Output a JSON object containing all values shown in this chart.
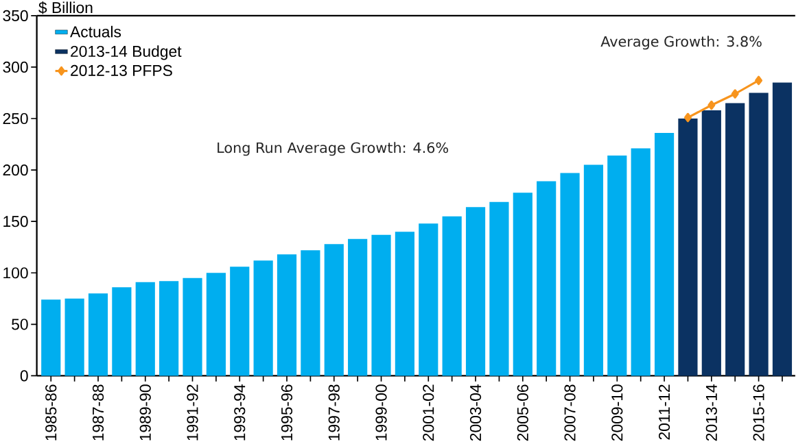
{
  "chart_data": {
    "type": "bar",
    "ylabel": "$ Billion",
    "categories": [
      "1985-86",
      null,
      "1987-88",
      null,
      "1989-90",
      null,
      "1991-92",
      null,
      "1993-94",
      null,
      "1995-96",
      null,
      "1997-98",
      null,
      "1999-00",
      null,
      "2001-02",
      null,
      "2003-04",
      null,
      "2005-06",
      null,
      "2007-08",
      null,
      "2009-10",
      null,
      "2011-12",
      null,
      "2013-14",
      null,
      "2015-16",
      null
    ],
    "series": [
      {
        "name": "Actuals",
        "color": "#00aeef",
        "values": [
          74,
          75,
          80,
          86,
          91,
          92,
          95,
          100,
          106,
          112,
          118,
          122,
          128,
          133,
          137,
          140,
          148,
          155,
          164,
          169,
          178,
          189,
          197,
          205,
          214,
          221,
          236,
          null,
          null,
          null,
          null,
          null
        ]
      },
      {
        "name": "2013-14 Budget",
        "color": "#0b3262",
        "values": [
          null,
          null,
          null,
          null,
          null,
          null,
          null,
          null,
          null,
          null,
          null,
          null,
          null,
          null,
          null,
          null,
          null,
          null,
          null,
          null,
          null,
          null,
          null,
          null,
          null,
          null,
          null,
          250,
          258,
          265,
          275,
          285
        ]
      },
      {
        "name": "2012-13 PFPS",
        "type": "line",
        "color": "#f7941d",
        "marker": "diamond",
        "values": [
          null,
          null,
          null,
          null,
          null,
          null,
          null,
          null,
          null,
          null,
          null,
          null,
          null,
          null,
          null,
          null,
          null,
          null,
          null,
          null,
          null,
          null,
          null,
          null,
          null,
          null,
          null,
          251,
          263,
          274,
          287,
          null
        ]
      }
    ],
    "ylim": [
      0,
      350
    ],
    "yticks": [
      0,
      50,
      100,
      150,
      200,
      250,
      300,
      350
    ],
    "legend": "top left",
    "annotations": [
      "Long Run Average Growth: 4.6%",
      "Average Growth: 3.8%"
    ]
  }
}
